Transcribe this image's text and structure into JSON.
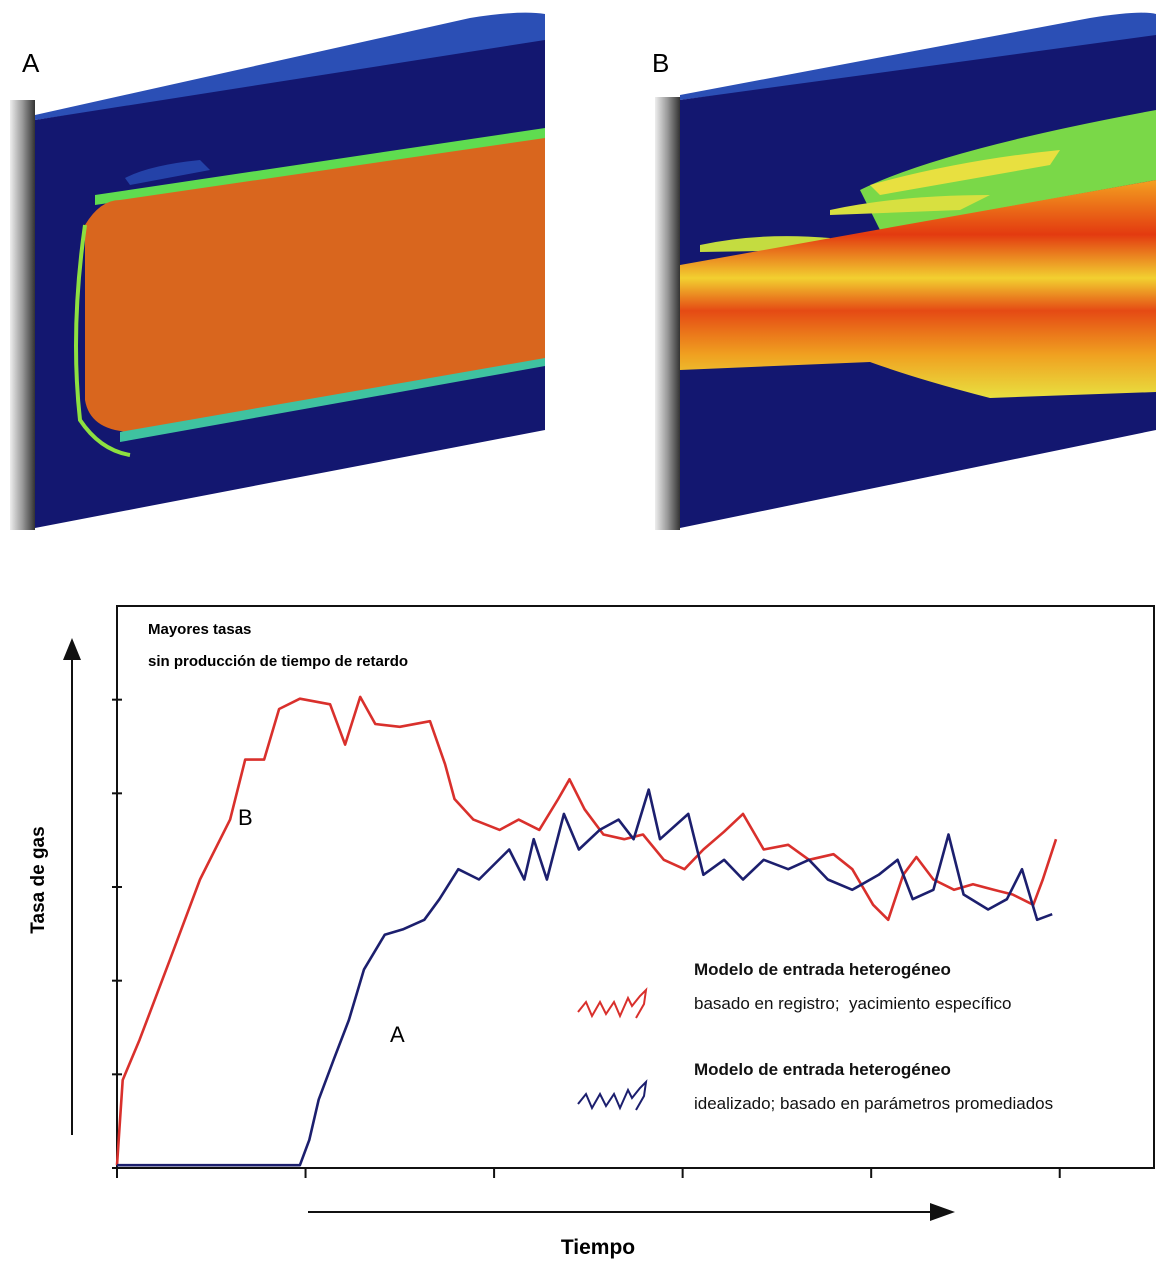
{
  "panels": [
    {
      "label": "A"
    },
    {
      "label": "B"
    }
  ],
  "chart_data": {
    "type": "line",
    "annotations": [
      "Mayores tasas",
      "sin producción de tiempo de retardo"
    ],
    "curve_labels": [
      "B",
      "A"
    ],
    "y_label": "Tasa de gas",
    "x_label": "Tiempo",
    "xlim": [
      0,
      5.5
    ],
    "ylim": [
      0,
      6
    ],
    "xticks": [
      0,
      1,
      2,
      3,
      4,
      5
    ],
    "yticks": [
      0,
      1,
      2,
      3,
      4,
      5
    ],
    "series": [
      {
        "name": "Modelo de entrada heterogéneo",
        "note": "basado en registro;  yacimiento específico",
        "color": "#d9302c",
        "x": [
          0,
          0.03,
          0.12,
          0.28,
          0.44,
          0.6,
          0.68,
          0.78,
          0.86,
          0.97,
          1.13,
          1.21,
          1.29,
          1.37,
          1.5,
          1.66,
          1.74,
          1.79,
          1.89,
          2.03,
          2.13,
          2.24,
          2.34,
          2.4,
          2.48,
          2.58,
          2.69,
          2.79,
          2.9,
          3.01,
          3.11,
          3.22,
          3.32,
          3.43,
          3.56,
          3.67,
          3.8,
          3.9,
          4.01,
          4.09,
          4.17,
          4.24,
          4.33,
          4.44,
          4.54,
          4.65,
          4.75,
          4.86,
          4.91,
          4.98
        ],
        "values": [
          0.03,
          0.94,
          1.37,
          2.22,
          3.08,
          3.72,
          4.36,
          4.36,
          4.9,
          5.01,
          4.95,
          4.52,
          5.03,
          4.74,
          4.71,
          4.77,
          4.31,
          3.94,
          3.72,
          3.61,
          3.72,
          3.61,
          3.94,
          4.15,
          3.83,
          3.56,
          3.51,
          3.56,
          3.29,
          3.19,
          3.4,
          3.59,
          3.78,
          3.4,
          3.45,
          3.29,
          3.35,
          3.19,
          2.81,
          2.65,
          3.13,
          3.32,
          3.08,
          2.97,
          3.03,
          2.97,
          2.92,
          2.81,
          3.08,
          3.51
        ]
      },
      {
        "name": "Modelo de entrada heterogéneo",
        "note": "idealizado; basado en parámetros promediados",
        "color": "#1c1f6e",
        "x": [
          0,
          0.97,
          1.02,
          1.07,
          1.15,
          1.23,
          1.31,
          1.42,
          1.52,
          1.63,
          1.71,
          1.81,
          1.92,
          2,
          2.08,
          2.16,
          2.21,
          2.28,
          2.37,
          2.45,
          2.56,
          2.66,
          2.74,
          2.82,
          2.88,
          3.03,
          3.11,
          3.22,
          3.32,
          3.43,
          3.56,
          3.67,
          3.77,
          3.9,
          4.04,
          4.14,
          4.22,
          4.33,
          4.41,
          4.49,
          4.62,
          4.72,
          4.8,
          4.88,
          4.96
        ],
        "values": [
          0.03,
          0.03,
          0.3,
          0.73,
          1.16,
          1.58,
          2.12,
          2.49,
          2.55,
          2.65,
          2.87,
          3.19,
          3.08,
          3.24,
          3.4,
          3.08,
          3.51,
          3.08,
          3.78,
          3.4,
          3.61,
          3.72,
          3.51,
          4.04,
          3.51,
          3.78,
          3.13,
          3.29,
          3.08,
          3.29,
          3.19,
          3.29,
          3.08,
          2.97,
          3.13,
          3.29,
          2.87,
          2.97,
          3.56,
          2.92,
          2.76,
          2.87,
          3.19,
          2.65,
          2.71
        ]
      }
    ]
  }
}
